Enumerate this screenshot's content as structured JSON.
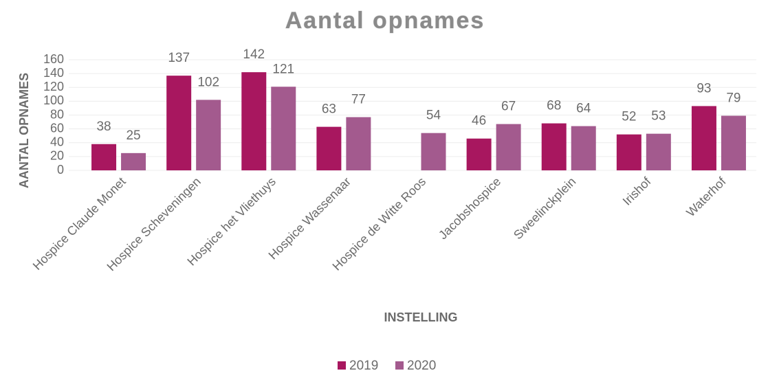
{
  "chart_data": {
    "type": "bar",
    "title": "Aantal opnames",
    "x_label": "INSTELLING",
    "y_label": "AANTAL OPNAMES",
    "categories": [
      "Hospice Claude Monet",
      "Hospice Scheveningen",
      "Hospice het Vliethuys",
      "Hospice Wassenaar",
      "Hospice de Witte Roos",
      "Jacobshospice",
      "Sweelinckplein",
      "Irishof",
      "Waterhof"
    ],
    "series": [
      {
        "name": "2019",
        "color": "#a8175f",
        "values": [
          38,
          137,
          142,
          63,
          null,
          46,
          68,
          52,
          93
        ]
      },
      {
        "name": "2020",
        "color": "#a35a8e",
        "values": [
          25,
          102,
          121,
          77,
          54,
          67,
          64,
          53,
          79
        ]
      }
    ],
    "ylim": [
      0,
      160
    ],
    "yticks": [
      0,
      20,
      40,
      60,
      80,
      100,
      120,
      140,
      160
    ],
    "grid": true,
    "legend": "bottom"
  }
}
